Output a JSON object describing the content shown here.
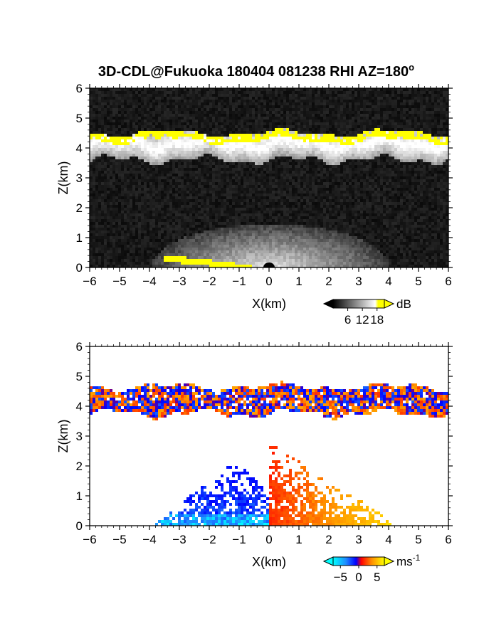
{
  "figure": {
    "title": "3D-CDL@Fukuoka 180404 081238 RHI AZ=180",
    "title_superscript": "o"
  },
  "chart_data": [
    {
      "type": "heatmap",
      "panel": "reflectivity",
      "xlabel": "X(km)",
      "ylabel": "Z(km)",
      "xlim": [
        -6,
        6
      ],
      "ylim": [
        0,
        6
      ],
      "xticks": [
        -6,
        -5,
        -4,
        -3,
        -2,
        -1,
        0,
        1,
        2,
        3,
        4,
        5,
        6
      ],
      "yticks": [
        0,
        1,
        2,
        3,
        4,
        5,
        6
      ],
      "grid": false,
      "colormap": "grayscale (black to white), saturated values yellow",
      "colorbar": {
        "unit": "dB",
        "ticks": [
          6,
          12,
          18
        ],
        "range": [
          0,
          21
        ],
        "colors": [
          "#000000",
          "#ffffff",
          "#ffff00"
        ]
      },
      "features": [
        {
          "name": "cloud layer",
          "x_range": [
            -6,
            6
          ],
          "z_range": [
            3.5,
            4.7
          ],
          "value_level": "high (saturated yellow at cloud base near z 4.2-4.6 km)"
        },
        {
          "name": "boundary-layer aerosol",
          "x_range": [
            -4,
            4
          ],
          "z_range": [
            0,
            1.5
          ],
          "value_level": "moderate, decreasing with height"
        },
        {
          "name": "near-surface strong echo",
          "x_range": [
            -3.5,
            -0.5
          ],
          "z_range": [
            0,
            0.5
          ],
          "value_level": "saturated yellow"
        }
      ]
    },
    {
      "type": "heatmap",
      "panel": "doppler-velocity",
      "xlabel": "X(km)",
      "ylabel": "Z(km)",
      "xlim": [
        -6,
        6
      ],
      "ylim": [
        0,
        6
      ],
      "xticks": [
        -6,
        -5,
        -4,
        -3,
        -2,
        -1,
        0,
        1,
        2,
        3,
        4,
        5,
        6
      ],
      "yticks": [
        0,
        1,
        2,
        3,
        4,
        5,
        6
      ],
      "grid": false,
      "colormap": "cyan-blue-red-orange-yellow diverging",
      "colorbar": {
        "unit": "ms",
        "unit_superscript": "-1",
        "ticks": [
          -5,
          0,
          5
        ],
        "range": [
          -7,
          7
        ],
        "colors": [
          "#00ffff",
          "#1e5cff",
          "#0000ff",
          "#ff0000",
          "#ff8c00",
          "#ffff00"
        ]
      },
      "features": [
        {
          "name": "cloud layer",
          "x_range": [
            -6,
            6
          ],
          "z_range": [
            3.6,
            4.8
          ],
          "velocity_range": [
            -4,
            3
          ]
        },
        {
          "name": "boundary layer x<0",
          "x_range": [
            -4,
            0
          ],
          "z_range": [
            0,
            2.3
          ],
          "velocity_range": [
            -6,
            0
          ]
        },
        {
          "name": "boundary layer x>0",
          "x_range": [
            0,
            4.5
          ],
          "z_range": [
            0,
            2.9
          ],
          "velocity_range": [
            0,
            6
          ]
        }
      ]
    }
  ]
}
